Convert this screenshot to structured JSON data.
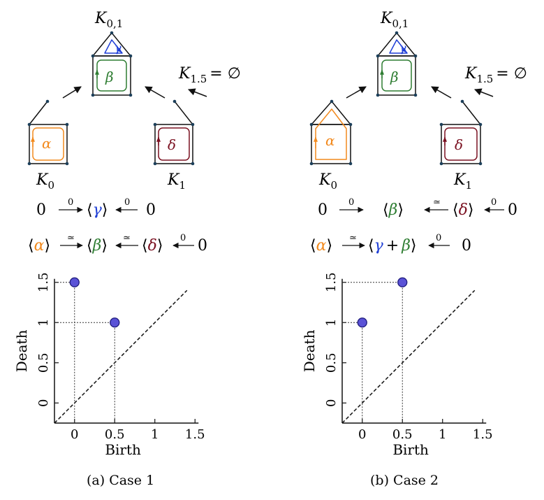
{
  "colors": {
    "alpha": "#f28a1e",
    "beta": "#2e7d32",
    "gamma": "#1f3fd6",
    "delta": "#7a1020",
    "point_fill": "#5a52d6",
    "point_stroke": "#1d1a7a",
    "vertex": "#1c3f5a"
  },
  "panels": [
    {
      "id": "a",
      "caption": "(a) Case 1",
      "complexes": {
        "K0": {
          "base": "K",
          "sub": "0",
          "loop": "α"
        },
        "K01": {
          "base": "K",
          "sub": "0,1",
          "loop_square": "β",
          "loop_roof": "γ"
        },
        "K1": {
          "base": "K",
          "sub": "1",
          "loop": "δ"
        },
        "K15": {
          "base": "K",
          "sub": "1.5",
          "eq": "= ∅"
        }
      },
      "sequence_row1": {
        "left": "0",
        "arrow1_label": "0",
        "middle_open": "⟨",
        "middle_sym": "γ",
        "middle_close": "⟩",
        "arrow2_label": "0",
        "right": "0"
      },
      "sequence_row2": {
        "g1_sym": "α",
        "arrow1_label": "≃",
        "g2_sym": "β",
        "arrow2_label": "≃",
        "g3_sym": "δ",
        "arrow3_label": "0",
        "right": "0"
      },
      "chart_data": {
        "type": "scatter",
        "xlabel": "Birth",
        "ylabel": "Death",
        "xlim": [
          -0.25,
          1.5
        ],
        "ylim": [
          -0.25,
          1.5
        ],
        "xticks": [
          "0",
          "0.5",
          "1",
          "1.5"
        ],
        "yticks": [
          "0",
          "0.5",
          "1",
          "1.5"
        ],
        "points": [
          {
            "x": 0,
            "y": 1.5
          },
          {
            "x": 0.5,
            "y": 1
          }
        ],
        "diagonal": true
      }
    },
    {
      "id": "b",
      "caption": "(b) Case 2",
      "complexes": {
        "K0": {
          "base": "K",
          "sub": "0",
          "loop": "α"
        },
        "K01": {
          "base": "K",
          "sub": "0,1",
          "loop_square": "β",
          "loop_roof": "γ"
        },
        "K1": {
          "base": "K",
          "sub": "1",
          "loop": "δ"
        },
        "K15": {
          "base": "K",
          "sub": "1.5",
          "eq": "= ∅"
        }
      },
      "sequence_row1": {
        "left": "0",
        "arrow1_label": "0",
        "middle_sym": "β",
        "arrow2_label": "≃",
        "g3_sym": "δ",
        "arrow3_label": "0",
        "right": "0"
      },
      "sequence_row2": {
        "g1_sym": "α",
        "arrow1_label": "≃",
        "sum_sym1": "γ",
        "plus": "+",
        "sum_sym2": "β",
        "arrow2_label": "0",
        "right": "0"
      },
      "chart_data": {
        "type": "scatter",
        "xlabel": "Birth",
        "ylabel": "Death",
        "xlim": [
          -0.25,
          1.5
        ],
        "ylim": [
          -0.25,
          1.5
        ],
        "xticks": [
          "0",
          "0.5",
          "1",
          "1.5"
        ],
        "yticks": [
          "0",
          "0.5",
          "1",
          "1.5"
        ],
        "points": [
          {
            "x": 0,
            "y": 1
          },
          {
            "x": 0.5,
            "y": 1.5
          }
        ],
        "diagonal": true
      }
    }
  ]
}
